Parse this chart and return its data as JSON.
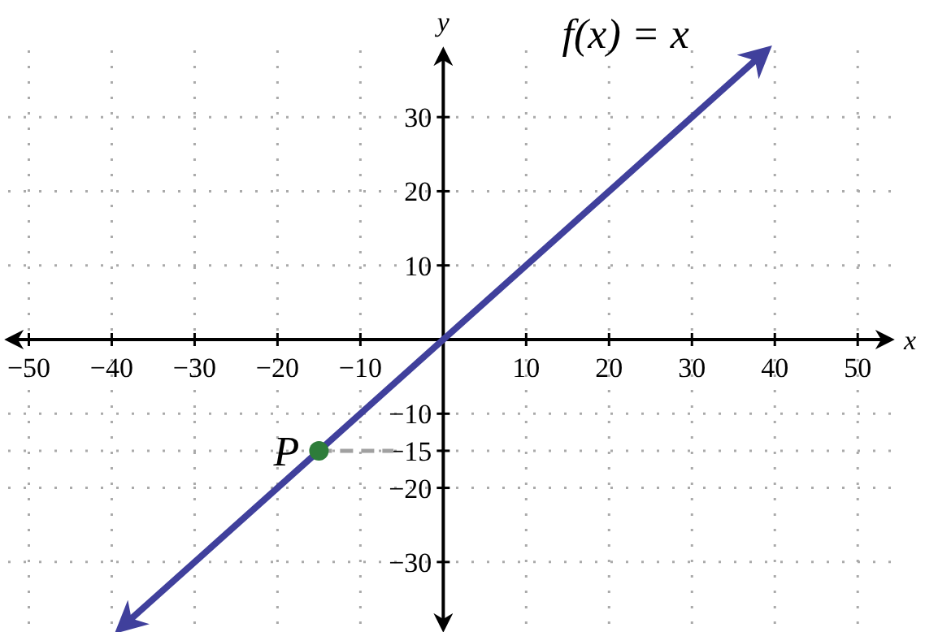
{
  "chart_data": {
    "type": "line",
    "xlabel": "x",
    "ylabel": "y",
    "xlim": [
      -52.5,
      54
    ],
    "ylim": [
      -39,
      39
    ],
    "xticks": [
      {
        "value": -50,
        "label": "−50"
      },
      {
        "value": -40,
        "label": "−40"
      },
      {
        "value": -30,
        "label": "−30"
      },
      {
        "value": -20,
        "label": "−20"
      },
      {
        "value": -10,
        "label": "−10"
      },
      10,
      20,
      30,
      40,
      50
    ],
    "yticks": [
      {
        "value": -30,
        "label": "−30"
      },
      {
        "value": -20,
        "label": "−20"
      },
      {
        "value": -15,
        "label": "−15"
      },
      {
        "value": -10,
        "label": "−10"
      },
      10,
      20,
      30
    ],
    "grid": true,
    "series": [
      {
        "name": "f(x) = x",
        "color": "#40409c",
        "x": [
          -38.5,
          38.5
        ],
        "values": [
          -38.5,
          38.5
        ]
      },
      {
        "type": "line",
        "color": "#a0a0a0",
        "line_style": "dashed",
        "x": [
          -15,
          -6
        ],
        "values": [
          -15,
          -15
        ]
      },
      {
        "name": "P",
        "type": "scatter",
        "color": "#2e7d3a",
        "marker": "circle",
        "x": [
          -15
        ],
        "values": [
          -15
        ]
      }
    ]
  }
}
